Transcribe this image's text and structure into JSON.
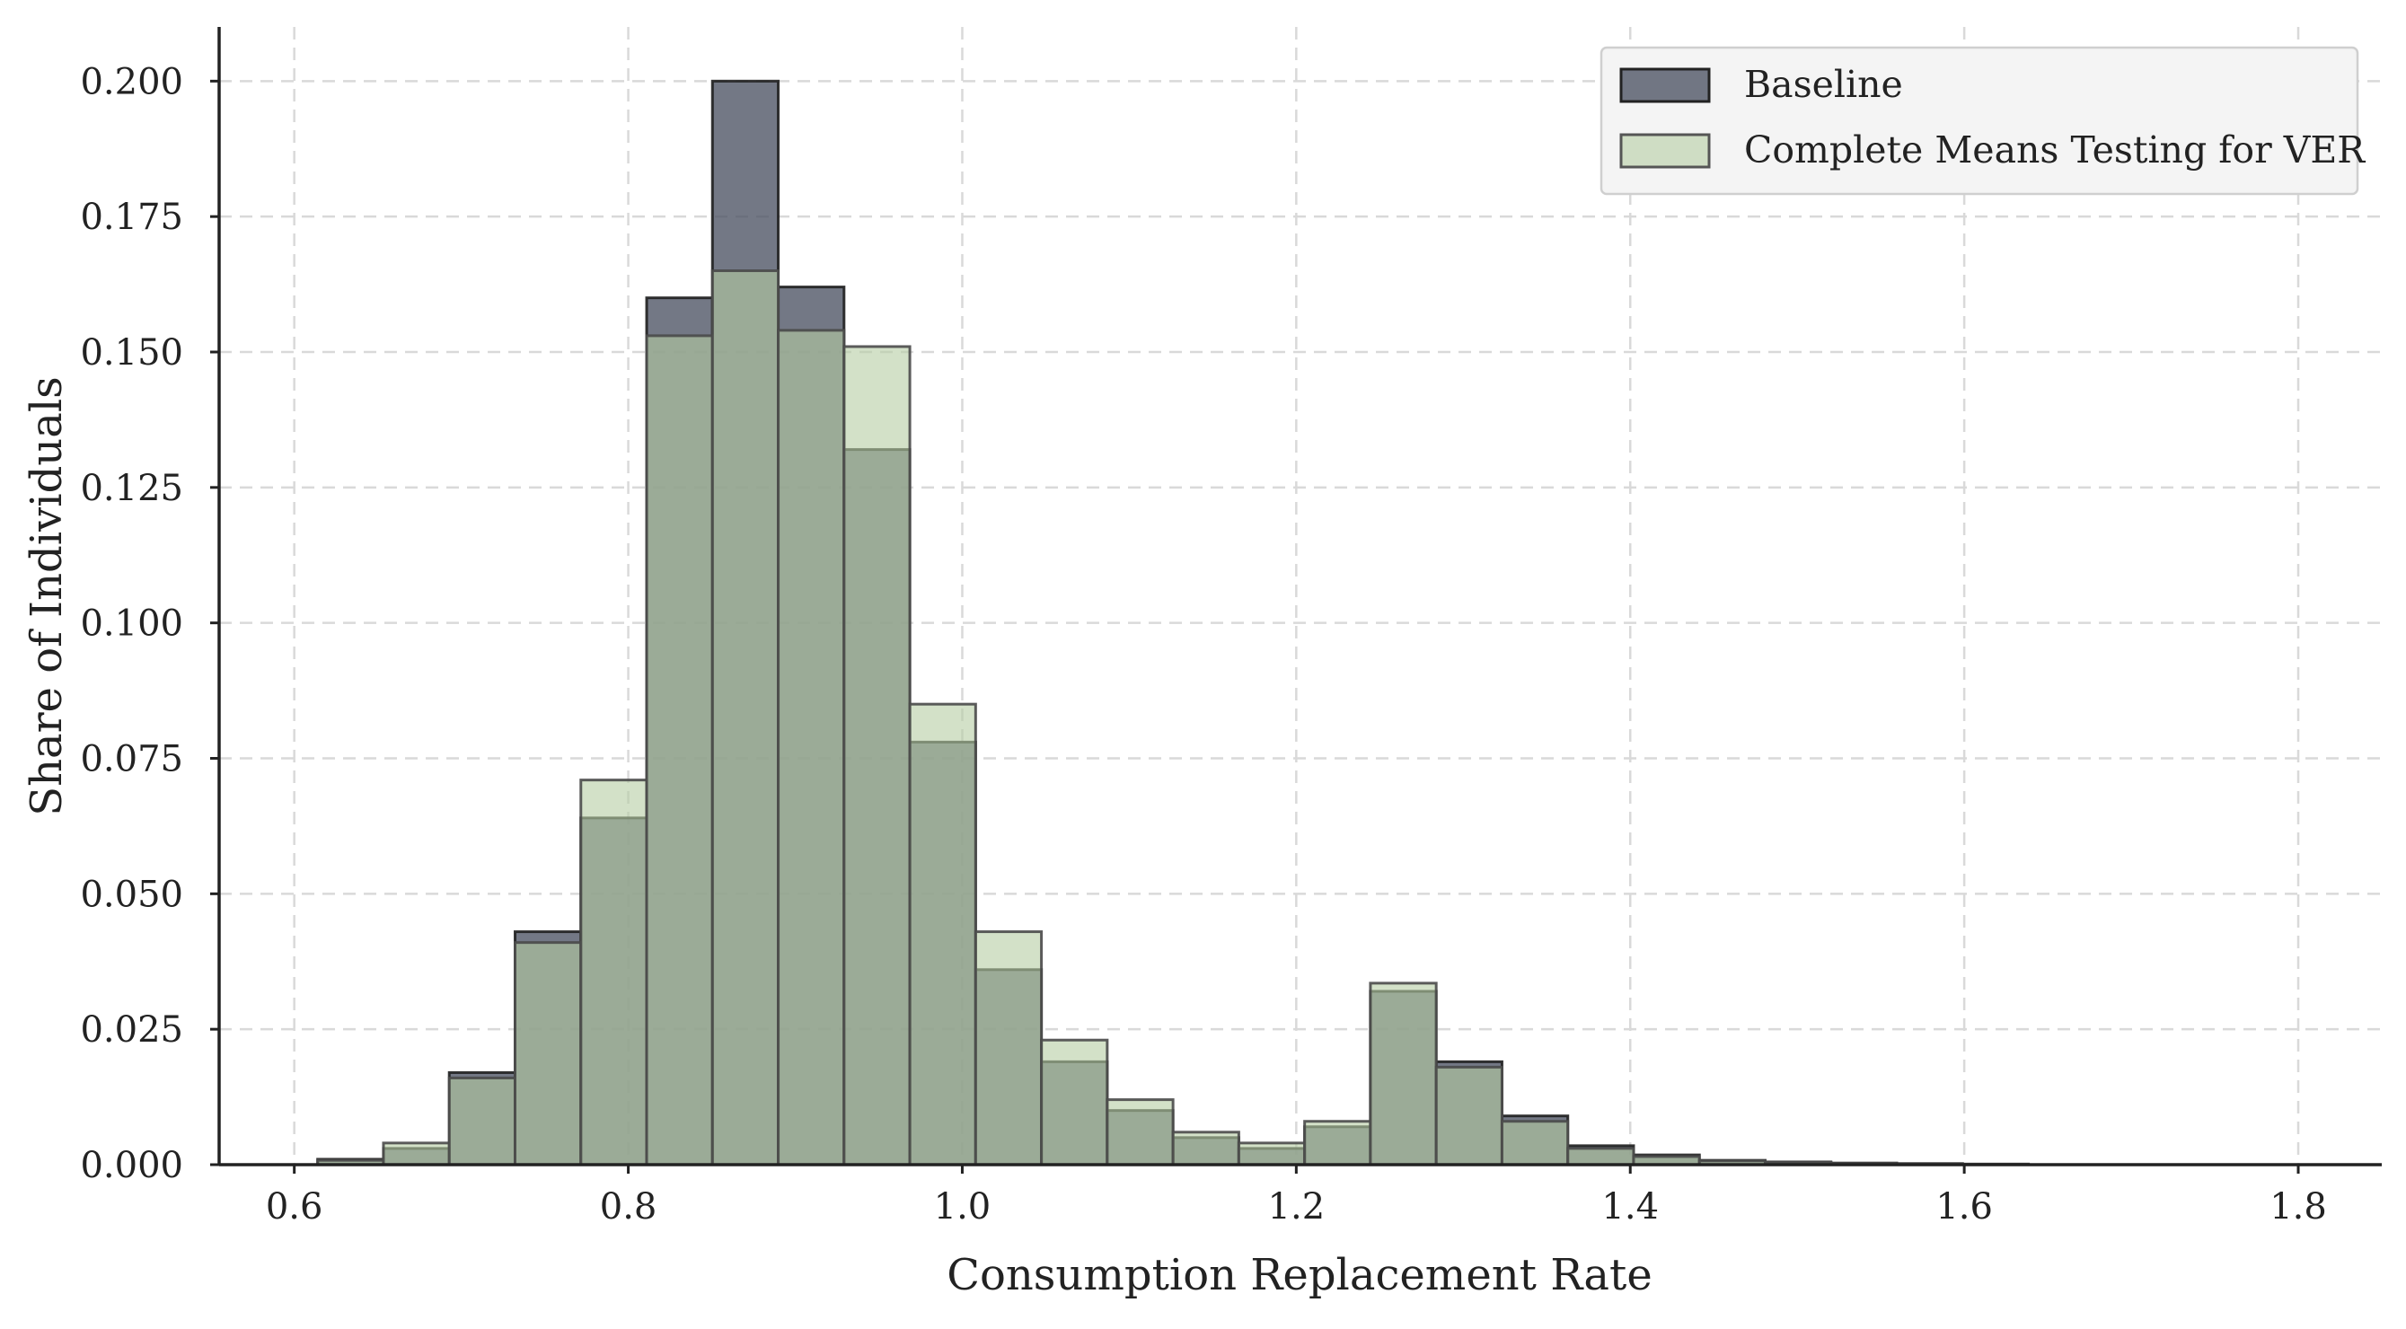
{
  "chart_data": {
    "type": "bar",
    "subtype": "overlaid-histogram",
    "title": "",
    "xlabel": "Consumption Replacement Rate",
    "ylabel": "Share of Individuals",
    "xlim": [
      0.555,
      1.85
    ],
    "ylim": [
      0,
      0.21
    ],
    "grid": true,
    "legend_position": "top-right",
    "x_ticks": [
      0.6,
      0.8,
      1.0,
      1.2,
      1.4,
      1.6,
      1.8
    ],
    "x_tick_labels": [
      "0.6",
      "0.8",
      "1.0",
      "1.2",
      "1.4",
      "1.6",
      "1.8"
    ],
    "y_ticks": [
      0.0,
      0.025,
      0.05,
      0.075,
      0.1,
      0.125,
      0.15,
      0.175,
      0.2
    ],
    "y_tick_labels": [
      "0.000",
      "0.025",
      "0.050",
      "0.075",
      "0.100",
      "0.125",
      "0.150",
      "0.175",
      "0.200"
    ],
    "bin_edges": [
      0.614,
      0.6534,
      0.6928,
      0.7322,
      0.7716,
      0.811,
      0.8504,
      0.8898,
      0.9292,
      0.9686,
      1.008,
      1.0474,
      1.0868,
      1.1262,
      1.1656,
      1.205,
      1.2444,
      1.2838,
      1.3232,
      1.3626,
      1.402,
      1.4414,
      1.4808,
      1.5202,
      1.5596,
      1.599,
      1.6384
    ],
    "series": [
      {
        "name": "Baseline",
        "color": "#4b5263",
        "values": [
          0.001,
          0.003,
          0.017,
          0.043,
          0.064,
          0.16,
          0.2,
          0.162,
          0.132,
          0.078,
          0.036,
          0.019,
          0.01,
          0.005,
          0.003,
          0.007,
          0.032,
          0.019,
          0.009,
          0.0035,
          0.0018,
          0.0008,
          0.0005,
          0.0003,
          0.0002,
          0.0001
        ]
      },
      {
        "name": "Complete Means Testing for VER",
        "color": "#b5cda3",
        "values": [
          0.0008,
          0.004,
          0.016,
          0.041,
          0.071,
          0.153,
          0.165,
          0.154,
          0.151,
          0.085,
          0.043,
          0.023,
          0.012,
          0.006,
          0.004,
          0.008,
          0.0335,
          0.018,
          0.008,
          0.003,
          0.0015,
          0.0007,
          0.0004,
          0.0002,
          0.0001,
          0.0001
        ]
      }
    ]
  }
}
